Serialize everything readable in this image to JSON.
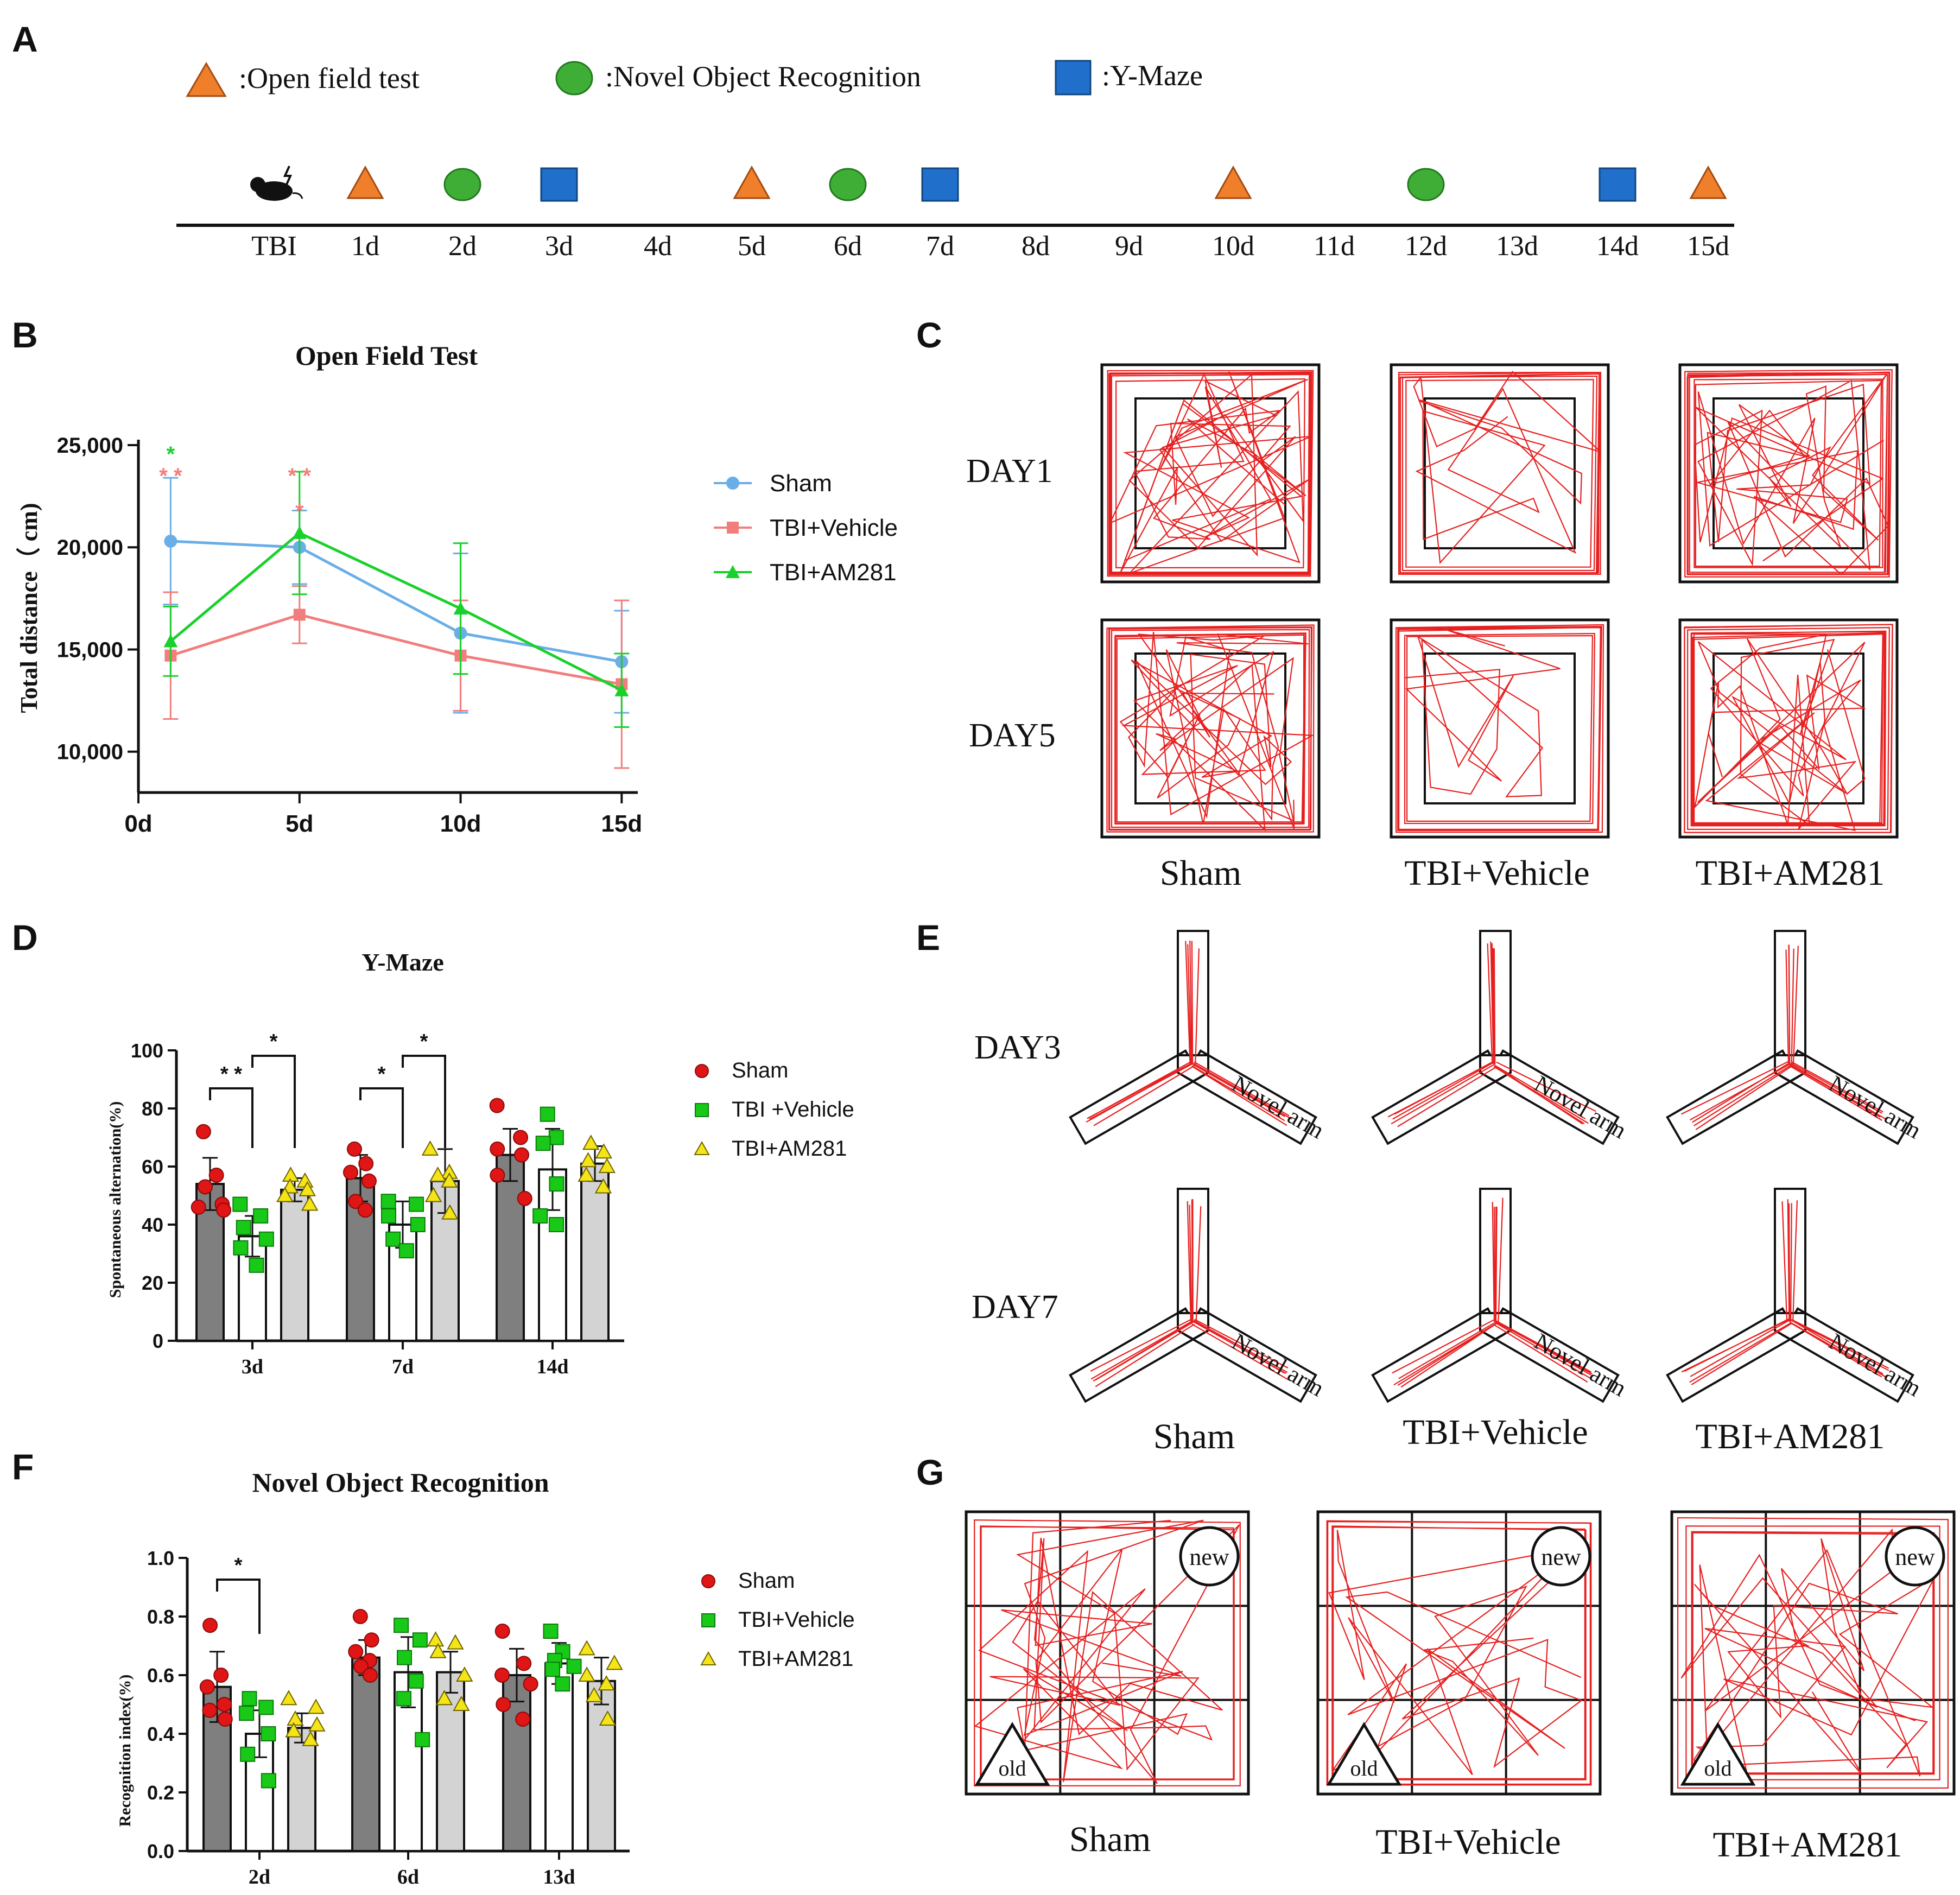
{
  "panel_labels": [
    "A",
    "B",
    "C",
    "D",
    "E",
    "F",
    "G"
  ],
  "timeline": {
    "legend": [
      {
        "shape": "triangle",
        "label": ":Open field test",
        "color": "#f07f2c"
      },
      {
        "shape": "circle",
        "label": ":Novel Object Recognition",
        "color": "#3fae37"
      },
      {
        "shape": "square",
        "label": ":Y-Maze",
        "color": "#1f6fcb"
      }
    ],
    "ticks": [
      "TBI",
      "1d",
      "2d",
      "3d",
      "4d",
      "5d",
      "6d",
      "7d",
      "8d",
      "9d",
      "10d",
      "11d",
      "12d",
      "13d",
      "14d",
      "15d"
    ],
    "events": [
      {
        "tick": "TBI",
        "shape": "mouse"
      },
      {
        "tick": "1d",
        "shape": "triangle"
      },
      {
        "tick": "2d",
        "shape": "circle"
      },
      {
        "tick": "3d",
        "shape": "square"
      },
      {
        "tick": "5d",
        "shape": "triangle"
      },
      {
        "tick": "6d",
        "shape": "circle"
      },
      {
        "tick": "7d",
        "shape": "square"
      },
      {
        "tick": "10d",
        "shape": "triangle"
      },
      {
        "tick": "12d",
        "shape": "circle"
      },
      {
        "tick": "14d",
        "shape": "square"
      },
      {
        "tick": "15d",
        "shape": "triangle"
      }
    ]
  },
  "colors": {
    "sham_line": "#6aaee8",
    "vehicle_line": "#f27d7d",
    "am281_line": "#19d12a",
    "sham_dot": "#e01515",
    "vehicle_dot": "#18c918",
    "am281_dot": "#f5e418",
    "bar_sham": "#7f7f7f",
    "bar_vehicle": "#ffffff",
    "bar_am281": "#d3d3d3",
    "track": "#e62020"
  },
  "chart_data": [
    {
      "id": "B",
      "type": "line",
      "title": "Open Field Test",
      "xlabel": "",
      "ylabel": "Total distance（ cm)",
      "x_ticks": [
        "0d",
        "5d",
        "10d",
        "15d"
      ],
      "y_ticks": [
        "10,000",
        "15,000",
        "20,000",
        "25,000"
      ],
      "xlim": [
        0,
        15.5
      ],
      "ylim": [
        8000,
        25000
      ],
      "x": [
        1,
        5,
        10,
        15
      ],
      "series": [
        {
          "name": "Sham",
          "values": [
            20300,
            20000,
            15800,
            14400
          ],
          "error": [
            3100,
            1800,
            3900,
            2500
          ],
          "marker": "circle"
        },
        {
          "name": "TBI+Vehicle",
          "values": [
            14700,
            16700,
            14700,
            13300
          ],
          "error": [
            3100,
            1400,
            2700,
            4100
          ],
          "marker": "square"
        },
        {
          "name": "TBI+AM281",
          "values": [
            15400,
            20700,
            17000,
            13000
          ],
          "error": [
            1700,
            3000,
            3200,
            1800
          ],
          "marker": "triangle"
        }
      ],
      "annotations": [
        {
          "x": 1,
          "text": "*",
          "color": "#19d12a",
          "level": 1
        },
        {
          "x": 1,
          "text": "* *",
          "color": "#f27d7d",
          "level": 0
        },
        {
          "x": 5,
          "text": "* *",
          "color": "#f27d7d",
          "level": 0
        },
        {
          "x": 5,
          "text": "*",
          "color": "#f27d7d",
          "level": -1
        }
      ]
    },
    {
      "id": "D",
      "type": "bar",
      "title": "Y-Maze",
      "xlabel": "",
      "ylabel": "Spontaneous alternation(%)",
      "categories": [
        "3d",
        "7d",
        "14d"
      ],
      "y_ticks": [
        "0",
        "20",
        "40",
        "60",
        "80",
        "100"
      ],
      "ylim": [
        0,
        100
      ],
      "series": [
        {
          "name": "Sham",
          "values": [
            54,
            56,
            64
          ],
          "error": [
            9,
            8,
            9
          ],
          "points": [
            [
              72,
              57,
              53,
              47,
              46,
              45
            ],
            [
              66,
              61,
              58,
              55,
              48,
              45
            ],
            [
              81,
              70,
              66,
              64,
              57,
              49
            ]
          ]
        },
        {
          "name": "TBI +Vehicle",
          "values": [
            36,
            40,
            59
          ],
          "error": [
            7,
            8,
            14
          ],
          "points": [
            [
              47,
              43,
              39,
              35,
              32,
              26
            ],
            [
              48,
              47,
              43,
              40,
              35,
              31
            ],
            [
              78,
              70,
              68,
              54,
              43,
              40
            ]
          ]
        },
        {
          "name": "TBI+AM281",
          "values": [
            52,
            55,
            61
          ],
          "error": [
            4,
            11,
            6
          ],
          "points": [
            [
              57,
              55,
              53,
              52,
              50,
              47
            ],
            [
              66,
              58,
              57,
              55,
              50,
              44
            ],
            [
              68,
              65,
              62,
              60,
              57,
              53
            ]
          ]
        }
      ],
      "significance": [
        {
          "group": "3d",
          "from": "Sham",
          "to": "TBI +Vehicle",
          "text": "* *"
        },
        {
          "group": "3d",
          "from": "TBI +Vehicle",
          "to": "TBI+AM281",
          "text": "*"
        },
        {
          "group": "7d",
          "from": "Sham",
          "to": "TBI +Vehicle",
          "text": "*"
        },
        {
          "group": "7d",
          "from": "TBI +Vehicle",
          "to": "TBI+AM281",
          "text": "*"
        }
      ]
    },
    {
      "id": "F",
      "type": "bar",
      "title": "Novel Object Recognition",
      "xlabel": "",
      "ylabel": "Recognition index(%)",
      "categories": [
        "2d",
        "6d",
        "13d"
      ],
      "y_ticks": [
        "0.0",
        "0.2",
        "0.4",
        "0.6",
        "0.8",
        "1.0"
      ],
      "ylim": [
        0,
        1
      ],
      "series": [
        {
          "name": "Sham",
          "values": [
            0.56,
            0.66,
            0.6
          ],
          "error": [
            0.12,
            0.06,
            0.09
          ],
          "points": [
            [
              0.77,
              0.6,
              0.56,
              0.5,
              0.48,
              0.45
            ],
            [
              0.8,
              0.72,
              0.68,
              0.65,
              0.63,
              0.6
            ],
            [
              0.75,
              0.64,
              0.6,
              0.57,
              0.5,
              0.45
            ]
          ]
        },
        {
          "name": "TBI+Vehicle",
          "values": [
            0.4,
            0.61,
            0.64
          ],
          "error": [
            0.08,
            0.12,
            0.07
          ],
          "points": [
            [
              0.52,
              0.49,
              0.47,
              0.4,
              0.33,
              0.24
            ],
            [
              0.77,
              0.72,
              0.66,
              0.58,
              0.52,
              0.38
            ],
            [
              0.75,
              0.68,
              0.65,
              0.63,
              0.62,
              0.57
            ]
          ]
        },
        {
          "name": "TBI+AM281",
          "values": [
            0.42,
            0.61,
            0.58
          ],
          "error": [
            0.05,
            0.07,
            0.08
          ],
          "points": [
            [
              0.52,
              0.49,
              0.45,
              0.43,
              0.41,
              0.38
            ],
            [
              0.72,
              0.71,
              0.68,
              0.6,
              0.52,
              0.5
            ],
            [
              0.69,
              0.64,
              0.6,
              0.57,
              0.53,
              0.45
            ]
          ]
        }
      ],
      "significance": [
        {
          "group": "2d",
          "from": "Sham",
          "to": "TBI+Vehicle",
          "text": "*"
        }
      ]
    }
  ],
  "panel_C": {
    "rows": [
      "DAY1",
      "DAY5"
    ],
    "groups": [
      "Sham",
      "TBI+Vehicle",
      "TBI+AM281"
    ]
  },
  "panel_E": {
    "rows": [
      "DAY3",
      "DAY7"
    ],
    "arm_label": "Novel arm",
    "groups": [
      "Sham",
      "TBI+Vehicle",
      "TBI+AM281"
    ]
  },
  "panel_G": {
    "new_label": "new",
    "old_label": "old",
    "groups": [
      "Sham",
      "TBI+Vehicle",
      "TBI+AM281"
    ]
  }
}
